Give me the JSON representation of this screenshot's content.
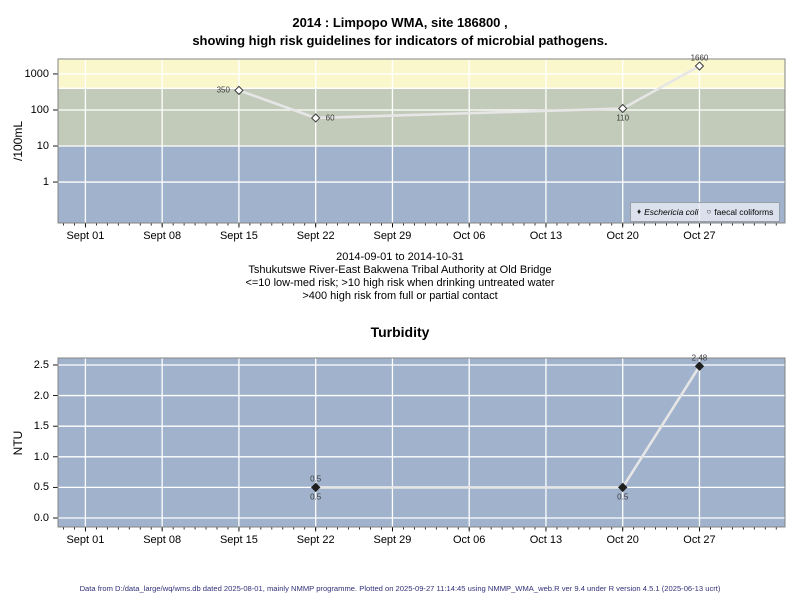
{
  "title": {
    "line1": "2014 : Limpopo WMA, site 186800 ,",
    "line2": "showing high risk guidelines for indicators of microbial pathogens."
  },
  "footer": "Data from D:/data_large/wq/wms.db dated 2025-08-01, mainly NMMP programme. Plotted on 2025-09-27 11:14:45 using NMMP_WMA_web.R ver 9.4 under R version 4.5.1 (2025-06-13 ucrt)",
  "colors": {
    "band_high_risk": "#fbf7cd",
    "band_medium": "#c2cbb9",
    "band_low": "#a1b2cc",
    "gridline": "#ffffff",
    "series_line": "#e6e6e6",
    "panel_border": "#848484",
    "marker_dark": "#1f1f1f",
    "footer_text": "#32327a"
  },
  "x_ticks": [
    {
      "day": 0,
      "label": "Sept 01"
    },
    {
      "day": 7,
      "label": "Sept 08"
    },
    {
      "day": 14,
      "label": "Sept 15"
    },
    {
      "day": 21,
      "label": "Sept 22"
    },
    {
      "day": 28,
      "label": "Sept 29"
    },
    {
      "day": 35,
      "label": "Oct 06"
    },
    {
      "day": 42,
      "label": "Oct 13"
    },
    {
      "day": 49,
      "label": "Oct 20"
    },
    {
      "day": 56,
      "label": "Oct 27"
    }
  ],
  "chart_data": [
    {
      "type": "line",
      "title": "",
      "ylabel": "/100mL",
      "yscale": "log",
      "ylim": [
        0.073,
        2600
      ],
      "xlim": [
        -2.5,
        63.8
      ],
      "yticks": [
        {
          "v": 1,
          "label": "1"
        },
        {
          "v": 10,
          "label": "10"
        },
        {
          "v": 100,
          "label": "100"
        },
        {
          "v": 1000,
          "label": "1000"
        }
      ],
      "ygrid": [
        1,
        10,
        100,
        1000,
        400
      ],
      "bands": [
        {
          "from": 400,
          "to": 2600,
          "color": "#fbf7cd",
          "meaning": ">400 high risk from full or partial contact"
        },
        {
          "from": 10,
          "to": 400,
          "color": "#c2cbb9",
          "meaning": ">10 high risk when drinking untreated water"
        },
        {
          "from": 0.073,
          "to": 10,
          "color": "#a1b2cc",
          "meaning": "<=10 low-med risk"
        }
      ],
      "series": [
        {
          "name": "faecal coliforms",
          "marker": "open-diamond",
          "points": [
            {
              "day": 14,
              "value": 350,
              "label": "350",
              "label_pos": "left"
            },
            {
              "day": 21,
              "value": 60,
              "label": "60",
              "label_pos": "right"
            },
            {
              "day": 49,
              "value": 110,
              "label": "110",
              "label_pos": "below"
            },
            {
              "day": 56,
              "value": 1660,
              "label": "1660",
              "label_pos": "above"
            }
          ]
        }
      ],
      "legend": [
        {
          "marker": "filled-diamond",
          "label": "Eschericia coli",
          "italic": true
        },
        {
          "marker": "open-circle",
          "label": "faecal coliforms",
          "italic": false
        }
      ],
      "caption": [
        "2014-09-01 to 2014-10-31",
        "Tshukutswe River-East Bakwena Tribal Authority at Old Bridge",
        "<=10 low-med risk; >10 high risk when drinking untreated water",
        ">400 high risk from full or partial contact"
      ]
    },
    {
      "type": "line",
      "title": "Turbidity",
      "ylabel": "NTU",
      "yscale": "linear",
      "ylim": [
        -0.147,
        2.614
      ],
      "xlim": [
        -2.5,
        63.8
      ],
      "panel_color": "#a1b2cc",
      "yticks": [
        {
          "v": 0.0,
          "label": "0.0"
        },
        {
          "v": 0.5,
          "label": "0.5"
        },
        {
          "v": 1.0,
          "label": "1.0"
        },
        {
          "v": 1.5,
          "label": "1.5"
        },
        {
          "v": 2.0,
          "label": "2.0"
        },
        {
          "v": 2.5,
          "label": "2.5"
        }
      ],
      "ygrid": [
        0.0,
        0.5,
        1.0,
        1.5,
        2.0,
        2.5
      ],
      "series": [
        {
          "name": "turbidity",
          "marker": "filled-diamond",
          "points": [
            {
              "day": 21,
              "value": 0.5,
              "labels": [
                {
                  "text": "0.5",
                  "pos": "above"
                },
                {
                  "text": "0.5",
                  "pos": "below"
                }
              ]
            },
            {
              "day": 49,
              "value": 0.5,
              "labels": [
                {
                  "text": "0.5",
                  "pos": "below"
                }
              ]
            },
            {
              "day": 56,
              "value": 2.48,
              "labels": [
                {
                  "text": "2.48",
                  "pos": "above"
                }
              ]
            }
          ]
        }
      ]
    }
  ]
}
